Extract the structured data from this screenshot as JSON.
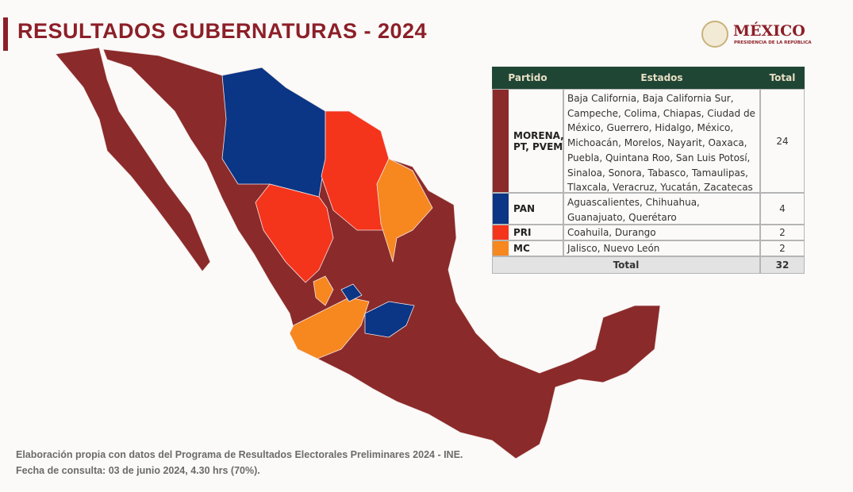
{
  "header": {
    "title": "RESULTADOS GUBERNATURAS - 2024",
    "logo": "MÉXICO",
    "logo_subtitle": "PRESIDENCIA DE LA REPÚBLICA"
  },
  "table": {
    "columns": [
      "Partido",
      "Estados",
      "Total"
    ],
    "rows": [
      [
        "MORENA, PT, PVEM",
        "Baja California, Baja California Sur, Campeche, Colima, Chiapas, Ciudad de México, Guerrero, Hidalgo, México, Michoacán, Morelos, Nayarit, Oaxaca, Puebla, Quintana Roo, San Luis Potosí, Sinaloa, Sonora, Tabasco, Tamaulipas, Tlaxcala, Veracruz, Yucatán, Zacatecas",
        "24"
      ],
      [
        "PAN",
        "Aguascalientes, Chihuahua, Guanajuato, Querétaro",
        "4"
      ],
      [
        "PRI",
        "Coahuila, Durango",
        "2"
      ],
      [
        "MC",
        "Jalisco, Nuevo León",
        "2"
      ]
    ],
    "total_label": "Total",
    "total": "32"
  },
  "footer": {
    "source": "Elaboración propia con datos del Programa de Resultados Electorales Preliminares 2024 - INE.",
    "date": "Fecha de consulta: 03 de junio 2024, 4.30 hrs (70%)."
  }
}
